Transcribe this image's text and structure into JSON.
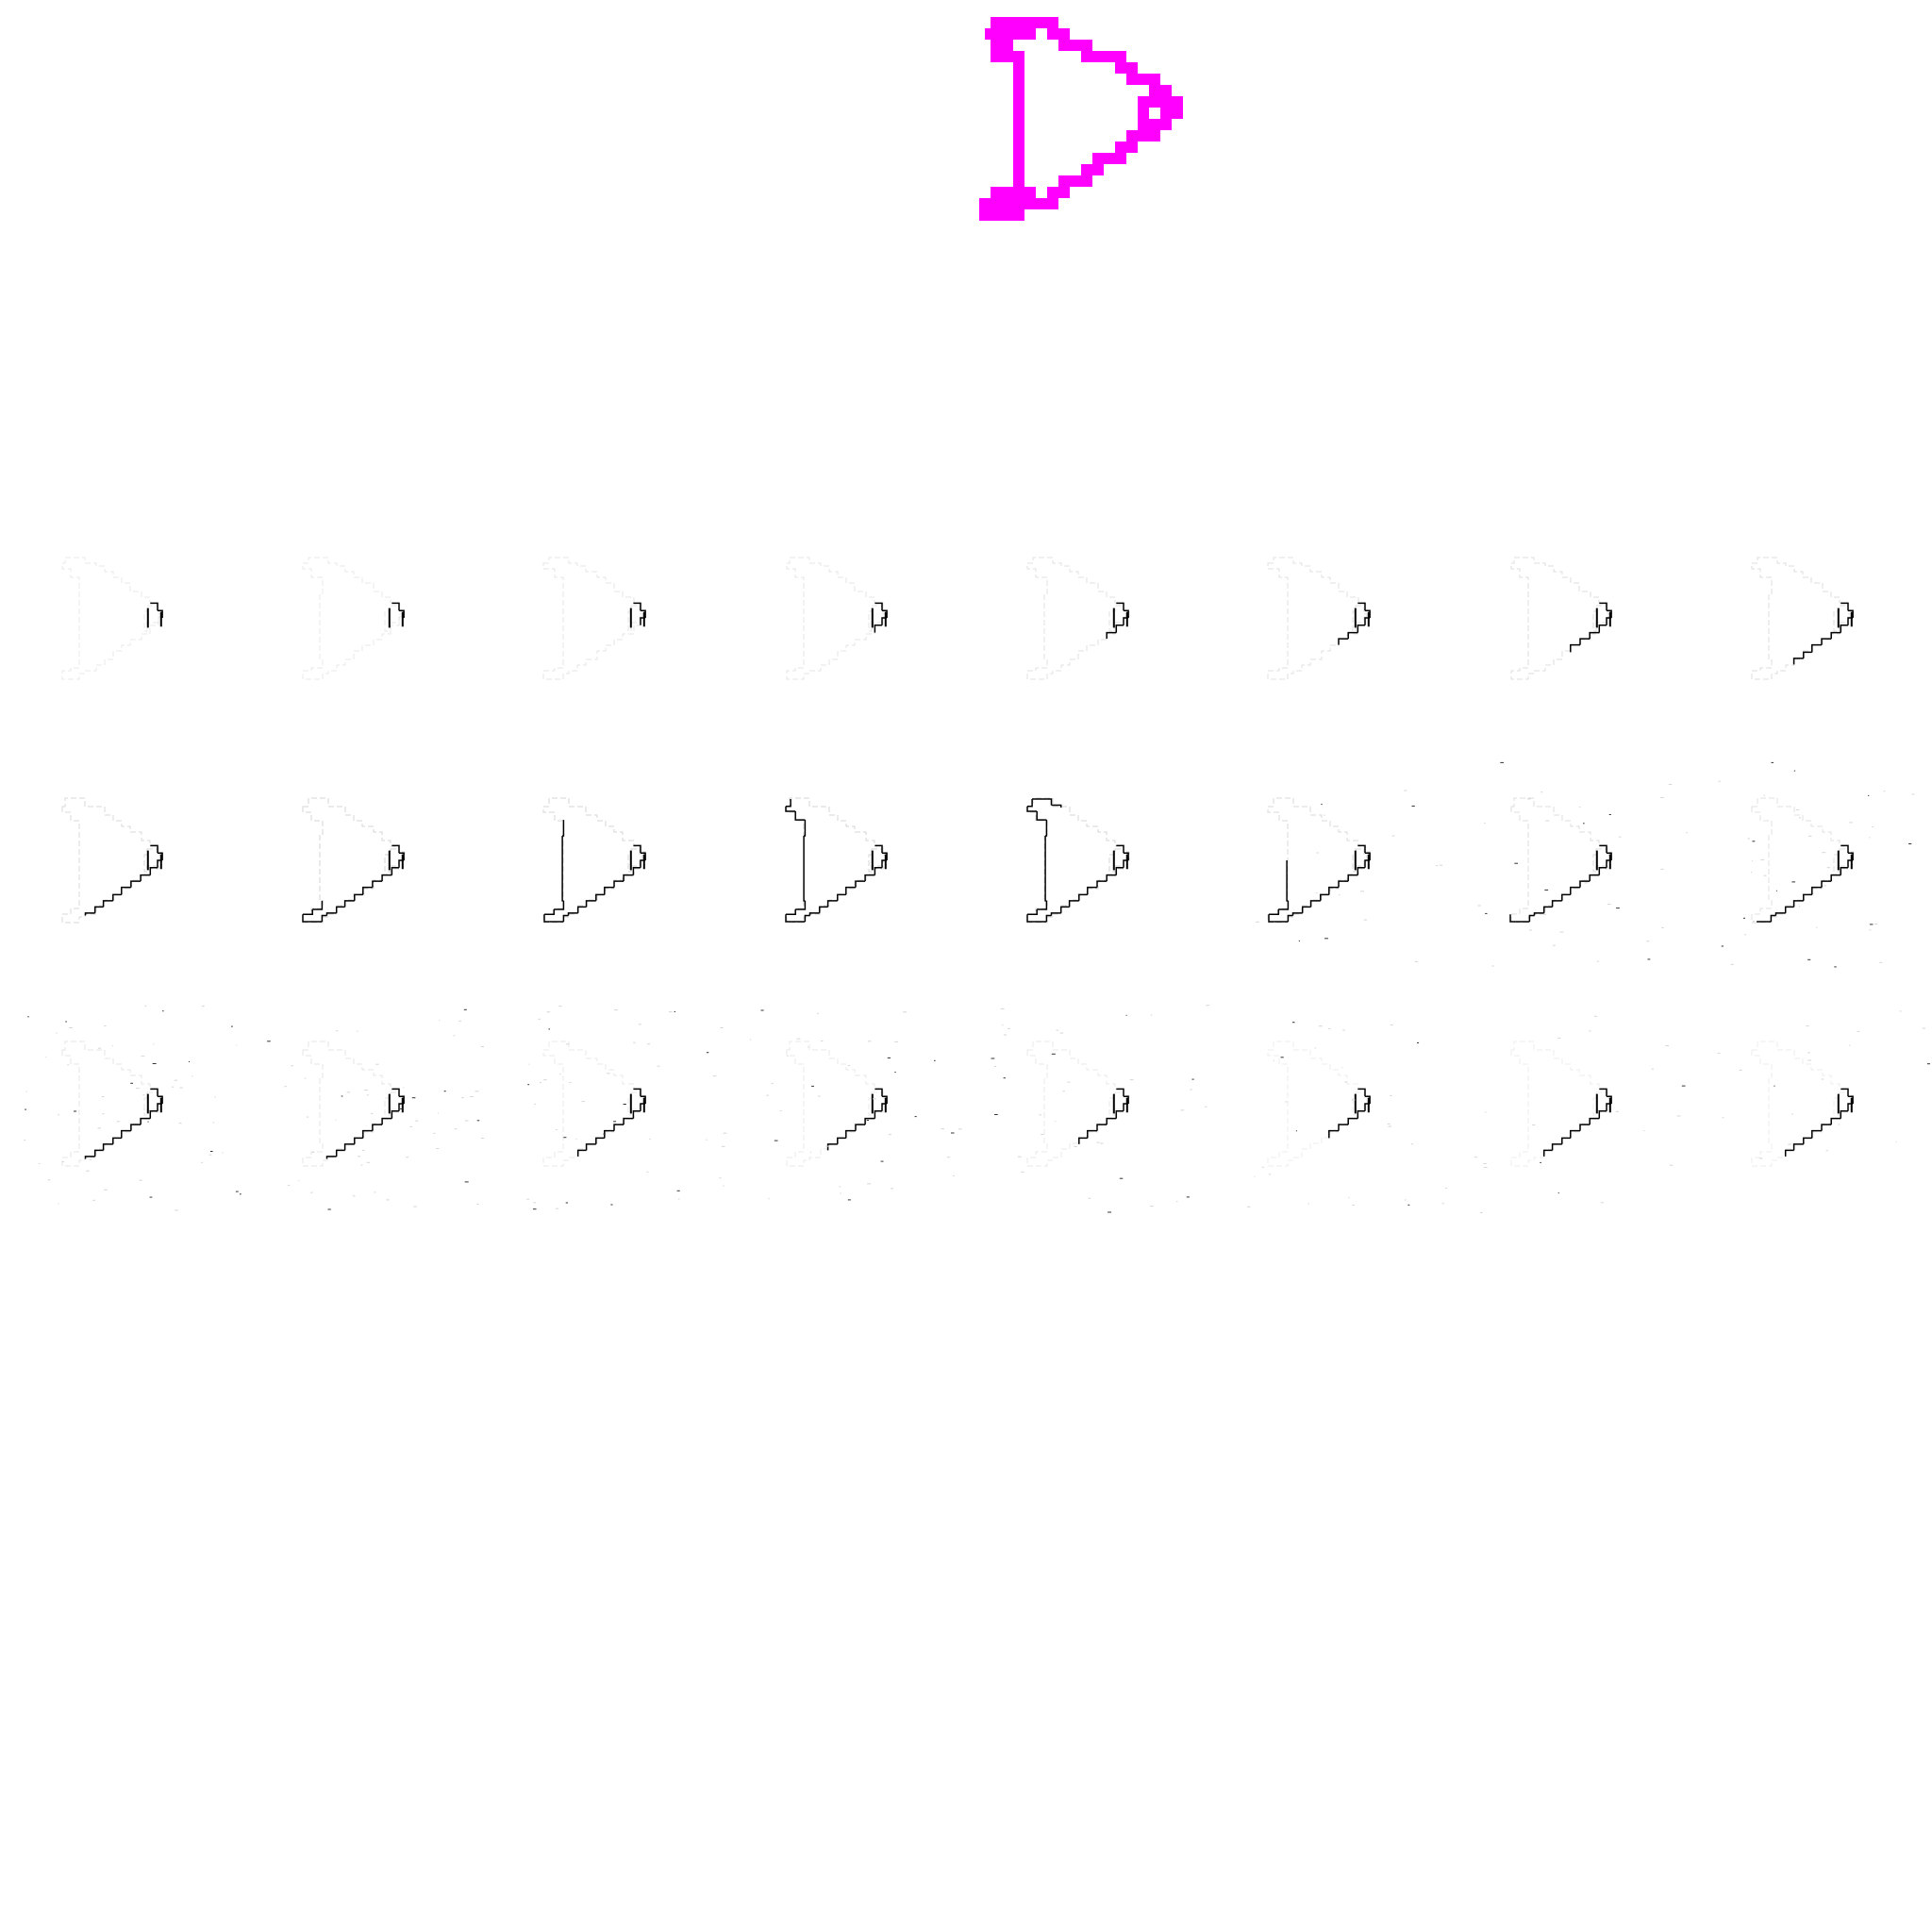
{
  "canvas": {
    "background": "#ffffff"
  },
  "target_shape": {
    "name": "magenta-pixel-outline-shape",
    "color": "#ff00ff"
  },
  "grid": {
    "rows": 3,
    "cols": 8,
    "stroke_color": "#000000",
    "frames": [
      {
        "index": 0,
        "opacity": 0.12,
        "dark_share": 0.05,
        "noise": 0.0
      },
      {
        "index": 1,
        "opacity": 0.12,
        "dark_share": 0.07,
        "noise": 0.0
      },
      {
        "index": 2,
        "opacity": 0.13,
        "dark_share": 0.09,
        "noise": 0.0
      },
      {
        "index": 3,
        "opacity": 0.14,
        "dark_share": 0.12,
        "noise": 0.0
      },
      {
        "index": 4,
        "opacity": 0.15,
        "dark_share": 0.15,
        "noise": 0.0
      },
      {
        "index": 5,
        "opacity": 0.16,
        "dark_share": 0.19,
        "noise": 0.0
      },
      {
        "index": 6,
        "opacity": 0.17,
        "dark_share": 0.23,
        "noise": 0.0
      },
      {
        "index": 7,
        "opacity": 0.18,
        "dark_share": 0.27,
        "noise": 0.0
      },
      {
        "index": 8,
        "opacity": 0.2,
        "dark_share": 0.35,
        "noise": 0.0
      },
      {
        "index": 9,
        "opacity": 0.22,
        "dark_share": 0.5,
        "noise": 0.0
      },
      {
        "index": 10,
        "opacity": 0.22,
        "dark_share": 0.62,
        "noise": 0.0
      },
      {
        "index": 11,
        "opacity": 0.22,
        "dark_share": 0.72,
        "noise": 0.0
      },
      {
        "index": 12,
        "opacity": 0.22,
        "dark_share": 0.8,
        "noise": 0.0
      },
      {
        "index": 13,
        "opacity": 0.2,
        "dark_share": 0.55,
        "noise": 0.1
      },
      {
        "index": 14,
        "opacity": 0.18,
        "dark_share": 0.45,
        "noise": 0.18
      },
      {
        "index": 15,
        "opacity": 0.16,
        "dark_share": 0.4,
        "noise": 0.24
      },
      {
        "index": 16,
        "opacity": 0.14,
        "dark_share": 0.35,
        "noise": 0.35
      },
      {
        "index": 17,
        "opacity": 0.13,
        "dark_share": 0.33,
        "noise": 0.32
      },
      {
        "index": 18,
        "opacity": 0.12,
        "dark_share": 0.3,
        "noise": 0.28
      },
      {
        "index": 19,
        "opacity": 0.12,
        "dark_share": 0.28,
        "noise": 0.24
      },
      {
        "index": 20,
        "opacity": 0.12,
        "dark_share": 0.25,
        "noise": 0.22
      },
      {
        "index": 21,
        "opacity": 0.1,
        "dark_share": 0.22,
        "noise": 0.18
      },
      {
        "index": 22,
        "opacity": 0.1,
        "dark_share": 0.3,
        "noise": 0.12
      },
      {
        "index": 23,
        "opacity": 0.1,
        "dark_share": 0.3,
        "noise": 0.12
      }
    ]
  }
}
